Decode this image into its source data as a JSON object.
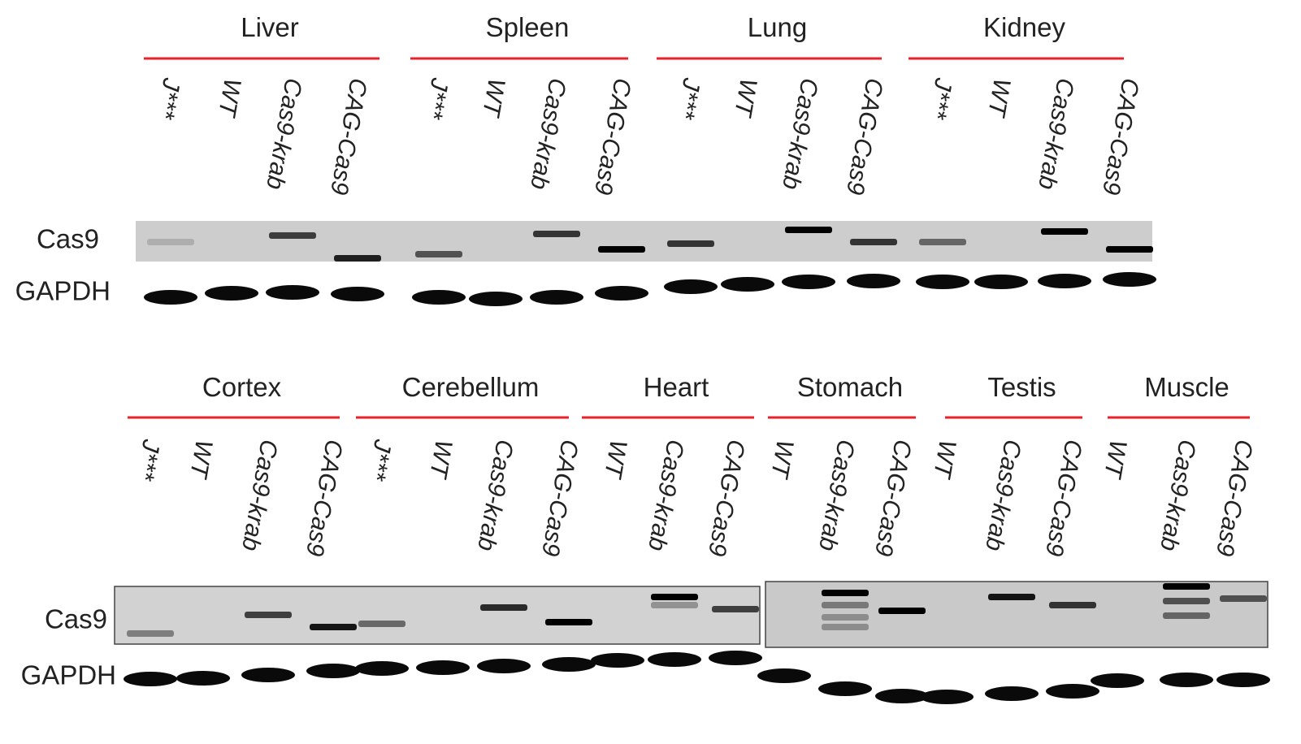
{
  "top": {
    "row_labels": [
      "Cas9",
      "GAPDH"
    ],
    "groups": [
      {
        "name": "Liver",
        "lanes": [
          "J***",
          "WT",
          "Cas9-krab",
          "CAG-Cas9"
        ]
      },
      {
        "name": "Spleen",
        "lanes": [
          "J***",
          "WT",
          "Cas9-krab",
          "CAG-Cas9"
        ]
      },
      {
        "name": "Lung",
        "lanes": [
          "J***",
          "WT",
          "Cas9-krab",
          "CAG-Cas9"
        ]
      },
      {
        "name": "Kidney",
        "lanes": [
          "J***",
          "WT",
          "Cas9-krab",
          "CAG-Cas9"
        ]
      }
    ]
  },
  "bottom": {
    "row_labels": [
      "Cas9",
      "GAPDH"
    ],
    "groups": [
      {
        "name": "Cortex",
        "lanes": [
          "J***",
          "WT",
          "Cas9-krab",
          "CAG-Cas9"
        ]
      },
      {
        "name": "Cerebellum",
        "lanes": [
          "J***",
          "WT",
          "Cas9-krab",
          "CAG-Cas9"
        ]
      },
      {
        "name": "Heart",
        "lanes": [
          "WT",
          "Cas9-krab",
          "CAG-Cas9"
        ]
      },
      {
        "name": "Stomach",
        "lanes": [
          "WT",
          "Cas9-krab",
          "CAG-Cas9"
        ]
      },
      {
        "name": "Testis",
        "lanes": [
          "WT",
          "Cas9-krab",
          "CAG-Cas9"
        ]
      },
      {
        "name": "Muscle",
        "lanes": [
          "WT",
          "Cas9-krab",
          "CAG-Cas9"
        ]
      }
    ]
  }
}
